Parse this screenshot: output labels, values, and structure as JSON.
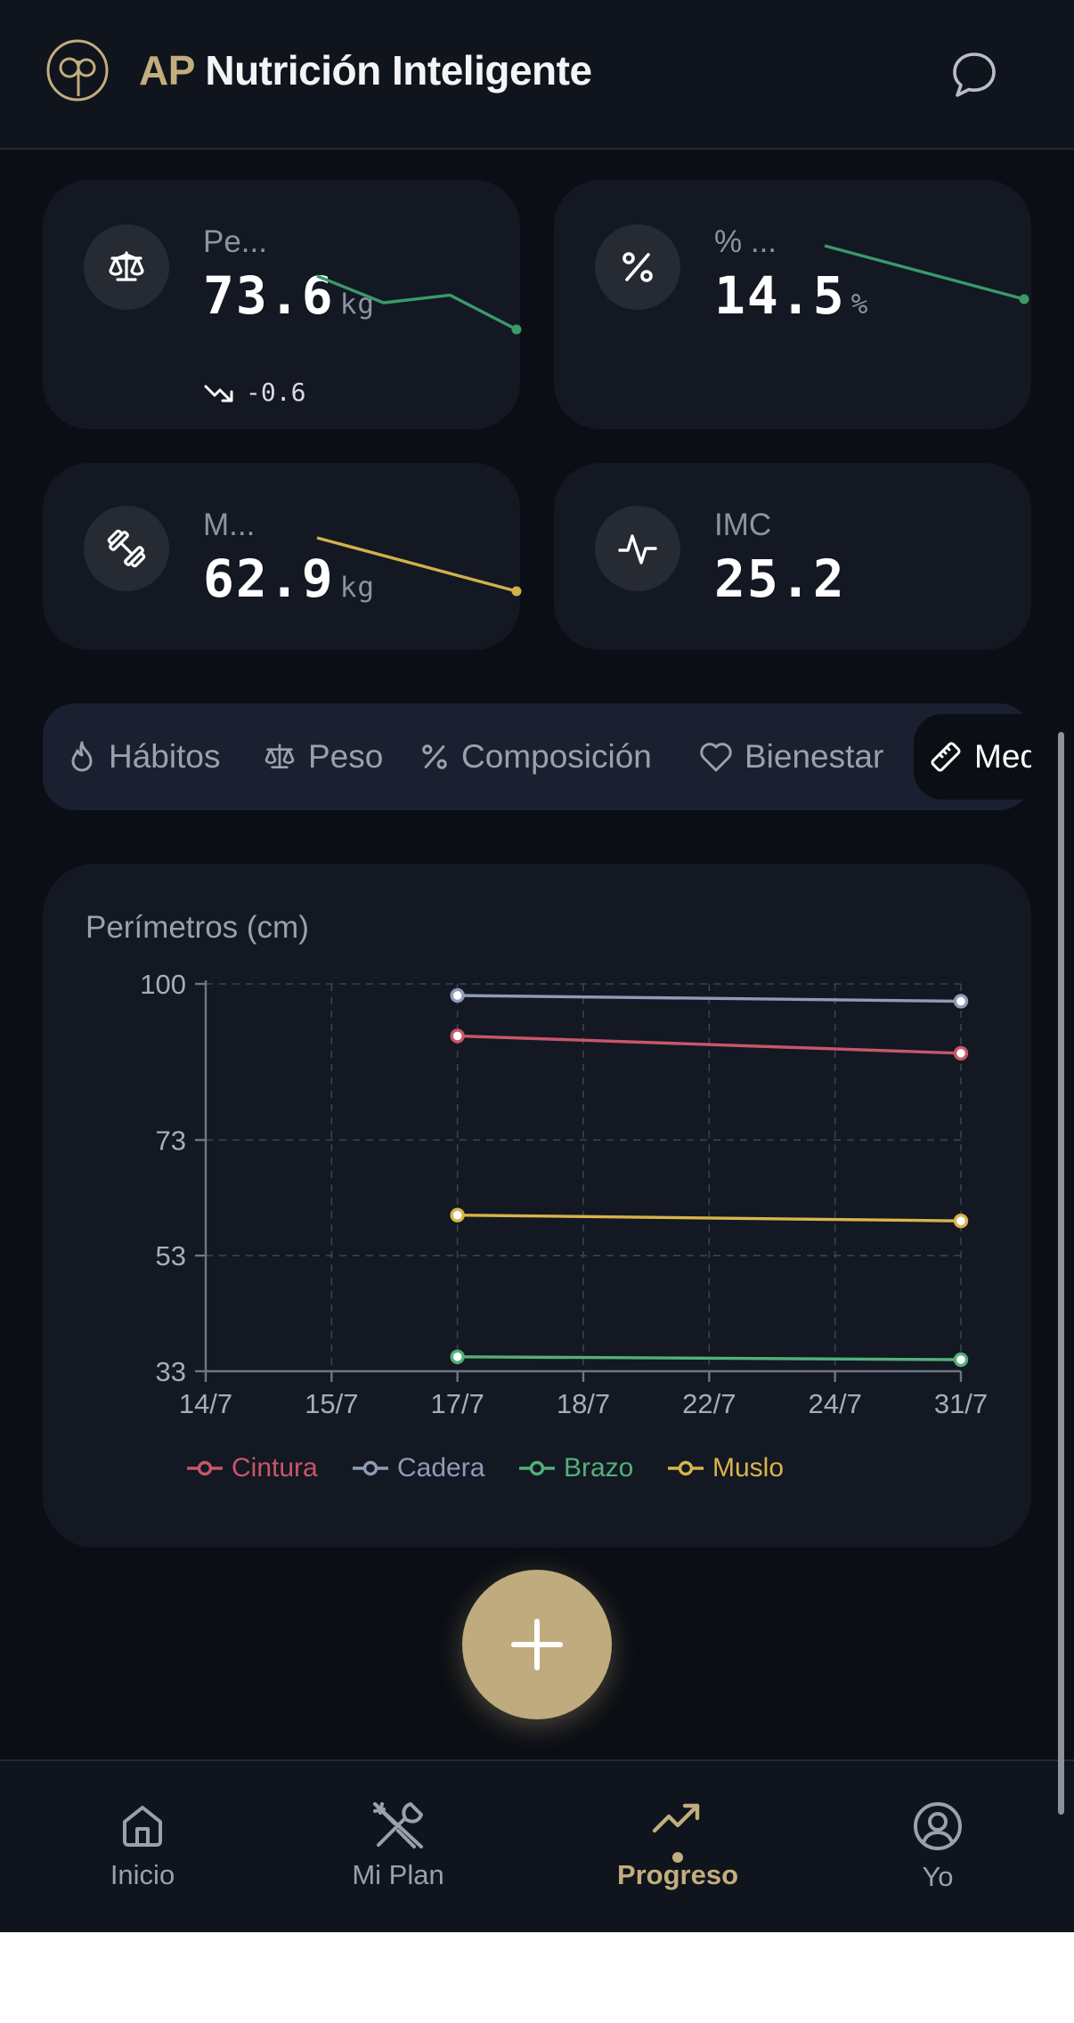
{
  "header": {
    "brand_ap": "AP",
    "brand_name": "Nutrición Inteligente",
    "logo_icon": "ap-monogram-logo",
    "chat_icon": "chat-bubble-icon"
  },
  "stats": [
    {
      "icon": "scale-icon",
      "label": "Pe...",
      "value": "73.6",
      "unit": "kg",
      "delta": "-0.6",
      "trend": [
        75.6,
        74.9,
        75.1,
        74.2
      ],
      "color": "#3a9a6a"
    },
    {
      "icon": "percent-icon",
      "label": "% ...",
      "value": "14.5",
      "unit": "%",
      "delta": "",
      "trend": [
        15.4,
        14.5
      ],
      "color": "#3a9a6a"
    },
    {
      "icon": "dumbbell-icon",
      "label": "M...",
      "value": "62.9",
      "unit": "kg",
      "delta": "",
      "trend": [
        64.1,
        62.9
      ],
      "color": "#d2b14a"
    },
    {
      "icon": "pulse-icon",
      "label": "IMC",
      "value": "25.2",
      "unit": "",
      "delta": ""
    }
  ],
  "tabs": [
    {
      "icon": "flame-icon",
      "label": "Hábitos",
      "active": false
    },
    {
      "icon": "scale-icon",
      "label": "Peso",
      "active": false
    },
    {
      "icon": "percent-icon",
      "label": "Composición",
      "active": false
    },
    {
      "icon": "heart-icon",
      "label": "Bienestar",
      "active": false
    },
    {
      "icon": "ruler-icon",
      "label": "Medidas",
      "active": true
    }
  ],
  "chart_data": {
    "type": "line",
    "title": "Perímetros (cm)",
    "categories": [
      "14/7",
      "15/7",
      "17/7",
      "18/7",
      "22/7",
      "24/7",
      "31/7"
    ],
    "ylim": [
      33,
      100
    ],
    "yticks": [
      100,
      73,
      53,
      33
    ],
    "grid": true,
    "legend": "bottom",
    "series": [
      {
        "name": "Cintura",
        "color": "#c9566a",
        "points": [
          {
            "x": "17/7",
            "y": 91
          },
          {
            "x": "31/7",
            "y": 88
          }
        ]
      },
      {
        "name": "Cadera",
        "color": "#8f9bb8",
        "points": [
          {
            "x": "17/7",
            "y": 98
          },
          {
            "x": "31/7",
            "y": 97
          }
        ]
      },
      {
        "name": "Brazo",
        "color": "#52b07a",
        "points": [
          {
            "x": "17/7",
            "y": 35.5
          },
          {
            "x": "31/7",
            "y": 35
          }
        ]
      },
      {
        "name": "Muslo",
        "color": "#d9b44a",
        "points": [
          {
            "x": "17/7",
            "y": 60
          },
          {
            "x": "31/7",
            "y": 59
          }
        ]
      }
    ]
  },
  "fab": {
    "icon": "plus-icon"
  },
  "nav": [
    {
      "icon": "home-icon",
      "label": "Inicio",
      "active": false
    },
    {
      "icon": "fork-knife-icon",
      "label": "Mi Plan",
      "active": false
    },
    {
      "icon": "trending-up-icon",
      "label": "Progreso",
      "active": true
    },
    {
      "icon": "user-circle-icon",
      "label": "Yo",
      "active": false
    }
  ],
  "colors": {
    "accent": "#c2ad7f",
    "background": "#0b0e14",
    "card": "#131822",
    "positive": "#3a9a6a"
  }
}
